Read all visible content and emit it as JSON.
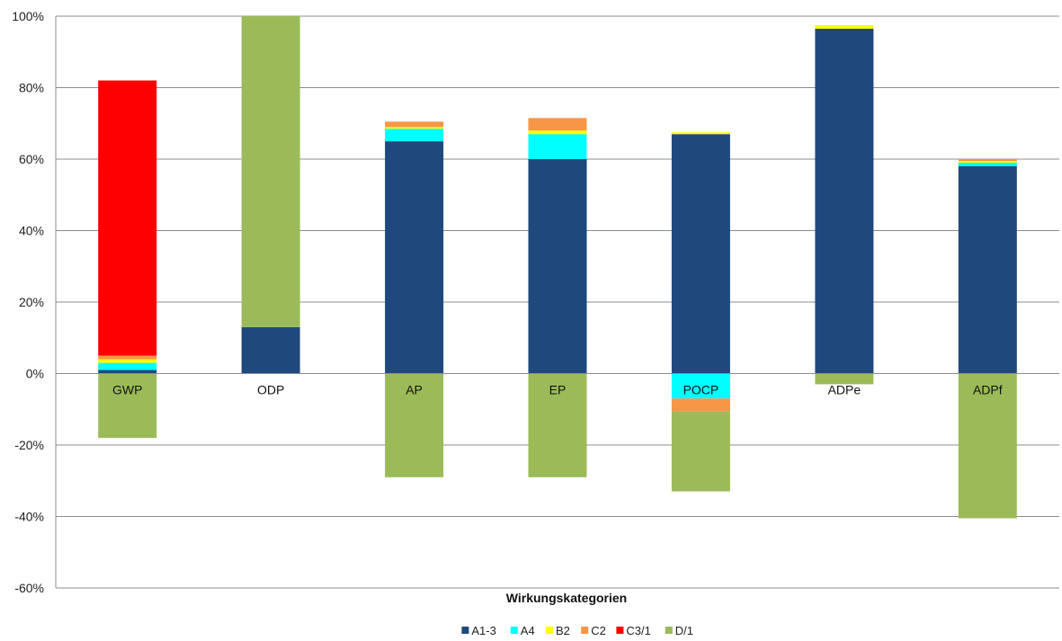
{
  "chart_data": {
    "type": "bar",
    "stacked": true,
    "title": "",
    "xlabel": "Wirkungskategorien",
    "ylabel": "",
    "ylim": [
      -60,
      100
    ],
    "y_tick_step": 20,
    "y_tick_suffix": "%",
    "grid": true,
    "legend_position": "bottom",
    "categories": [
      "GWP",
      "ODP",
      "AP",
      "EP",
      "POCP",
      "ADPe",
      "ADPf"
    ],
    "series": [
      {
        "name": "A1-3",
        "color": "#1f497d",
        "values": [
          1,
          13,
          65,
          60,
          67,
          96.5,
          58
        ]
      },
      {
        "name": "A4",
        "color": "#00ffff",
        "values": [
          2,
          0,
          3.5,
          7,
          -7,
          0,
          1
        ]
      },
      {
        "name": "B2",
        "color": "#ffff00",
        "values": [
          1,
          0,
          0.5,
          1,
          0.5,
          1,
          0.5
        ]
      },
      {
        "name": "C2",
        "color": "#f79646",
        "values": [
          1,
          0,
          1.5,
          3.5,
          -3.5,
          0,
          0.5
        ]
      },
      {
        "name": "C3/1",
        "color": "#ff0000",
        "values": [
          77,
          0,
          0,
          0,
          0,
          0,
          0
        ]
      },
      {
        "name": "D/1",
        "color": "#9bbb59",
        "values": [
          -18,
          87,
          -29,
          -29,
          -22.5,
          -3,
          -40.5
        ]
      }
    ]
  }
}
